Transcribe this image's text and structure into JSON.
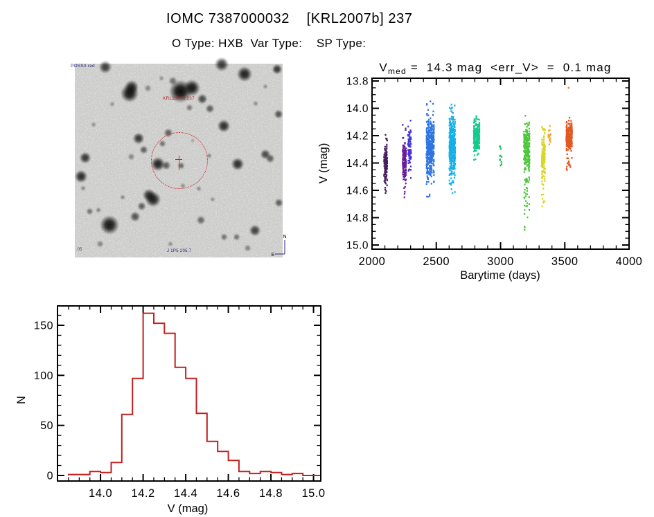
{
  "page": {
    "title": "IOMC 7387000032    [KRL2007b] 237",
    "subtitle": "O Type: HXB  Var Type:    SP Type:"
  },
  "finder": {
    "survey_label": "POSSII red",
    "source_label": "KRL2007b 237",
    "coords_label": "J 1P5 205.7",
    "scale_label": ".05",
    "compass_north": "N",
    "compass_east": "E",
    "marker_color": "#cc2020",
    "annotation_color": "#26267d",
    "stars": [
      [
        14.7,
        1.8,
        9,
        0.75
      ],
      [
        26.3,
        15.4,
        13,
        0.95
      ],
      [
        27.3,
        12.1,
        10,
        0.85
      ],
      [
        50.7,
        14.3,
        16,
        1
      ],
      [
        56.3,
        12.5,
        12,
        0.95
      ],
      [
        47.3,
        8.9,
        6,
        0.5
      ],
      [
        61.3,
        18.2,
        7,
        0.7
      ],
      [
        70.7,
        0.5,
        10,
        0.8
      ],
      [
        81.7,
        5.4,
        11,
        0.9
      ],
      [
        97.3,
        2.9,
        7,
        0.8
      ],
      [
        55,
        22.5,
        5,
        0.45
      ],
      [
        65,
        23.2,
        6,
        0.6
      ],
      [
        98,
        26.1,
        6,
        0.65
      ],
      [
        71.7,
        32.1,
        9,
        0.85
      ],
      [
        5,
        48.6,
        8,
        0.8
      ],
      [
        3,
        58.2,
        9,
        0.85
      ],
      [
        30.7,
        38.6,
        8,
        0.8
      ],
      [
        33.3,
        44.6,
        6,
        0.6
      ],
      [
        27.3,
        48.2,
        5,
        0.4
      ],
      [
        40,
        51.8,
        10,
        0.9
      ],
      [
        44,
        52.5,
        6,
        0.6
      ],
      [
        51.3,
        52.5,
        5,
        0.55
      ],
      [
        45,
        35.7,
        6,
        0.6
      ],
      [
        42.3,
        41.4,
        5,
        0.5
      ],
      [
        78.3,
        51.8,
        9,
        0.85
      ],
      [
        91.7,
        46.8,
        7,
        0.7
      ],
      [
        94,
        48.9,
        6,
        0.6
      ],
      [
        35.7,
        67.9,
        9,
        0.8
      ],
      [
        37.7,
        70,
        11,
        0.9
      ],
      [
        32.3,
        73.6,
        6,
        0.6
      ],
      [
        16.7,
        83.2,
        14,
        0.95
      ],
      [
        7.3,
        76.1,
        5,
        0.5
      ],
      [
        29,
        78.9,
        7,
        0.65
      ],
      [
        60.7,
        80.7,
        6,
        0.55
      ],
      [
        66.3,
        70,
        4,
        0.35
      ],
      [
        86.7,
        86.1,
        8,
        0.75
      ],
      [
        71.7,
        89.6,
        5,
        0.5
      ],
      [
        78,
        89.6,
        5,
        0.5
      ],
      [
        59.7,
        64.6,
        4,
        0.35
      ],
      [
        23,
        68.9,
        4,
        0.4
      ],
      [
        11.3,
        75.4,
        4,
        0.4
      ],
      [
        4,
        64.3,
        4,
        0.4
      ],
      [
        98.3,
        71.8,
        6,
        0.6
      ],
      [
        91.7,
        11.8,
        4,
        0.35
      ],
      [
        41.7,
        7.5,
        4,
        0.35
      ],
      [
        35,
        12.5,
        5,
        0.4
      ],
      [
        64.7,
        47.5,
        4,
        0.4
      ],
      [
        56.7,
        39.6,
        3,
        0.3
      ],
      [
        87,
        20.4,
        4,
        0.35
      ],
      [
        9,
        31.4,
        4,
        0.35
      ],
      [
        18,
        21,
        4,
        0.3
      ],
      [
        52,
        63,
        4,
        0.35
      ],
      [
        12,
        93,
        5,
        0.4
      ],
      [
        46,
        93,
        4,
        0.35
      ],
      [
        83,
        95,
        5,
        0.4
      ]
    ]
  },
  "chart_data": [
    {
      "type": "scatter",
      "title": {
        "var": "V",
        "sub": "med",
        "rest": " =  14.3 mag  <err_V>  =  0.1 mag"
      },
      "xlabel": "Barytime (days)",
      "ylabel": "V (mag)",
      "xlim": [
        2000,
        4000
      ],
      "ylim": [
        15.0,
        13.8
      ],
      "x_major_ticks": [
        2000,
        2500,
        3000,
        3500,
        4000
      ],
      "x_minor_step": 100,
      "y_major_ticks": [
        13.8,
        14.0,
        14.2,
        14.4,
        14.6,
        14.8,
        15.0
      ],
      "y_minor_step": 0.05,
      "v_median_mag": 14.3,
      "mean_err_v_mag": 0.1,
      "series": [
        {
          "name": "epoch-2100",
          "color": "#380a52",
          "columns": [
            2098,
            2106,
            2114
          ],
          "count": 130,
          "v_core": [
            14.25,
            14.55
          ],
          "v_full": [
            14.15,
            14.62
          ]
        },
        {
          "name": "epoch-2250",
          "color": "#5c0a96",
          "columns": [
            2243,
            2252,
            2261
          ],
          "count": 170,
          "v_core": [
            14.25,
            14.55
          ],
          "v_full": [
            14.12,
            14.68
          ]
        },
        {
          "name": "epoch-2290",
          "color": "#3123d8",
          "columns": [
            2284,
            2292,
            2300
          ],
          "count": 90,
          "v_core": [
            14.15,
            14.45
          ],
          "v_full": [
            14.08,
            14.55
          ]
        },
        {
          "name": "epoch-2450",
          "color": "#1e6ae0",
          "columns": [
            2428,
            2440,
            2452,
            2464,
            2478
          ],
          "count": 430,
          "v_core": [
            14.08,
            14.52
          ],
          "v_full": [
            13.94,
            14.65
          ]
        },
        {
          "name": "epoch-2620",
          "color": "#00aae8",
          "columns": [
            2606,
            2618,
            2630,
            2642
          ],
          "count": 390,
          "v_core": [
            14.05,
            14.5
          ],
          "v_full": [
            13.96,
            14.62
          ]
        },
        {
          "name": "epoch-2800",
          "color": "#00c686",
          "columns": [
            2796,
            2808,
            2820,
            2832
          ],
          "count": 230,
          "v_core": [
            14.1,
            14.32
          ],
          "v_full": [
            14.05,
            14.38
          ]
        },
        {
          "name": "epoch-3000",
          "color": "#00b848",
          "columns": [
            2998,
            3006
          ],
          "count": 11,
          "v_core": [
            14.26,
            14.44
          ],
          "v_full": [
            14.22,
            14.47
          ]
        },
        {
          "name": "epoch-3200",
          "color": "#3fc32a",
          "columns": [
            3186,
            3198,
            3210,
            3222
          ],
          "count": 230,
          "v_core": [
            14.1,
            14.48
          ],
          "v_full": [
            14.05,
            14.56
          ],
          "tail_count": 28,
          "v_tail": [
            14.5,
            14.92
          ]
        },
        {
          "name": "epoch-3330",
          "color": "#d6d411",
          "columns": [
            3324,
            3333,
            3342
          ],
          "count": 150,
          "v_core": [
            14.22,
            14.5
          ],
          "v_full": [
            14.13,
            14.56
          ],
          "tail_count": 14,
          "v_tail": [
            14.5,
            14.74
          ]
        },
        {
          "name": "epoch-3380",
          "color": "#f0a21c",
          "columns": [
            3377,
            3386
          ],
          "count": 18,
          "v_core": [
            14.13,
            14.28
          ],
          "v_full": [
            14.1,
            14.32
          ]
        },
        {
          "name": "epoch-3540",
          "color": "#e04a10",
          "columns": [
            3516,
            3528,
            3540,
            3552
          ],
          "count": 260,
          "v_core": [
            14.1,
            14.32
          ],
          "v_full": [
            14.06,
            14.46
          ]
        }
      ],
      "outliers": [
        {
          "t": 3530,
          "v": 13.85,
          "color": "#ed8b21"
        }
      ]
    },
    {
      "type": "bar",
      "title": "",
      "xlabel": "V (mag)",
      "ylabel": "N",
      "xlim": [
        13.798,
        15.034
      ],
      "ylim": [
        0,
        169
      ],
      "x_major_ticks": [
        14.0,
        14.2,
        14.4,
        14.6,
        14.8
      ],
      "x_minor_step": 0.05,
      "y_major_ticks": [
        0,
        50,
        100,
        150
      ],
      "y_minor_step": 10,
      "bin_start": 13.85,
      "bin_width": 0.05,
      "values": [
        1,
        1,
        4,
        3,
        13,
        61,
        97,
        162,
        152,
        142,
        108,
        97,
        62,
        34,
        24,
        15,
        4,
        2,
        4,
        3,
        1,
        2
      ],
      "color": "#c41e1e"
    }
  ]
}
